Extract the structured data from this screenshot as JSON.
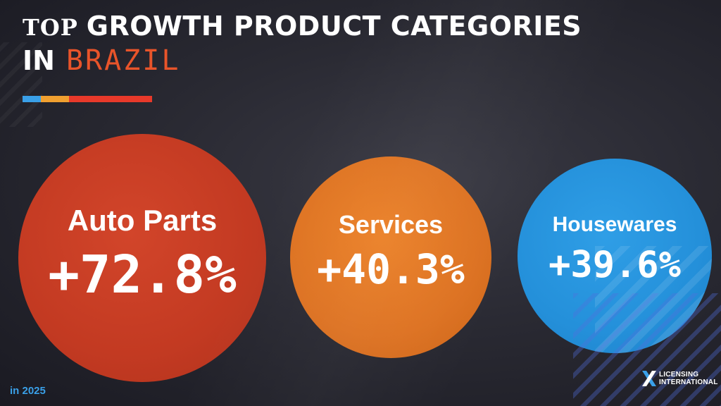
{
  "title": {
    "line1_lead": "TOP",
    "line1_rest": "GROWTH PRODUCT CATEGORIES",
    "line2_lead": "IN",
    "country": "BRAZIL"
  },
  "colors": {
    "background": "#2a2a33",
    "accent_blue": "#3aa0e8",
    "accent_orange": "#f0a030",
    "accent_red": "#e8392a",
    "country_text": "#e8542a",
    "auto_parts": "#c33a22",
    "services": "#dd7222",
    "housewares": "#2490da"
  },
  "categories": [
    {
      "name": "Auto Parts",
      "growth": "+72.8%"
    },
    {
      "name": "Services",
      "growth": "+40.3%"
    },
    {
      "name": "Housewares",
      "growth": "+39.6%"
    }
  ],
  "footnote": "in 2025",
  "logo": {
    "icon": "x-logo-icon",
    "line1": "LICENSING",
    "line2": "INTERNATIONAL"
  }
}
